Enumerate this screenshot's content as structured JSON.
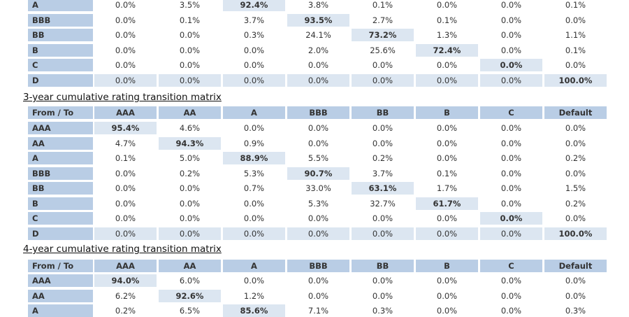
{
  "tables": [
    {
      "rows": [
        {
          "label": "A",
          "cells": [
            "0.0%",
            "3.5%",
            "92.4%",
            "3.8%",
            "0.1%",
            "0.0%",
            "0.0%",
            "0.1%"
          ]
        },
        {
          "label": "BBB",
          "cells": [
            "0.0%",
            "0.1%",
            "3.7%",
            "93.5%",
            "2.7%",
            "0.1%",
            "0.0%",
            "0.0%"
          ]
        },
        {
          "label": "BB",
          "cells": [
            "0.0%",
            "0.0%",
            "0.3%",
            "24.1%",
            "73.2%",
            "1.3%",
            "0.0%",
            "1.1%"
          ]
        },
        {
          "label": "B",
          "cells": [
            "0.0%",
            "0.0%",
            "0.0%",
            "2.0%",
            "25.6%",
            "72.4%",
            "0.0%",
            "0.1%"
          ]
        },
        {
          "label": "C",
          "cells": [
            "0.0%",
            "0.0%",
            "0.0%",
            "0.0%",
            "0.0%",
            "0.0%",
            "0.0%",
            "0.0%"
          ]
        },
        {
          "label": "D",
          "cells": [
            "0.0%",
            "0.0%",
            "0.0%",
            "0.0%",
            "0.0%",
            "0.0%",
            "0.0%",
            "100.0%"
          ]
        }
      ]
    },
    {
      "title": "3-year cumulative rating transition matrix",
      "header": [
        "From / To",
        "AAA",
        "AA",
        "A",
        "BBB",
        "BB",
        "B",
        "C",
        "Default"
      ],
      "rows": [
        {
          "label": "AAA",
          "cells": [
            "95.4%",
            "4.6%",
            "0.0%",
            "0.0%",
            "0.0%",
            "0.0%",
            "0.0%",
            "0.0%"
          ]
        },
        {
          "label": "AA",
          "cells": [
            "4.7%",
            "94.3%",
            "0.9%",
            "0.0%",
            "0.0%",
            "0.0%",
            "0.0%",
            "0.0%"
          ]
        },
        {
          "label": "A",
          "cells": [
            "0.1%",
            "5.0%",
            "88.9%",
            "5.5%",
            "0.2%",
            "0.0%",
            "0.0%",
            "0.2%"
          ]
        },
        {
          "label": "BBB",
          "cells": [
            "0.0%",
            "0.2%",
            "5.3%",
            "90.7%",
            "3.7%",
            "0.1%",
            "0.0%",
            "0.0%"
          ]
        },
        {
          "label": "BB",
          "cells": [
            "0.0%",
            "0.0%",
            "0.7%",
            "33.0%",
            "63.1%",
            "1.7%",
            "0.0%",
            "1.5%"
          ]
        },
        {
          "label": "B",
          "cells": [
            "0.0%",
            "0.0%",
            "0.0%",
            "5.3%",
            "32.7%",
            "61.7%",
            "0.0%",
            "0.2%"
          ]
        },
        {
          "label": "C",
          "cells": [
            "0.0%",
            "0.0%",
            "0.0%",
            "0.0%",
            "0.0%",
            "0.0%",
            "0.0%",
            "0.0%"
          ]
        },
        {
          "label": "D",
          "cells": [
            "0.0%",
            "0.0%",
            "0.0%",
            "0.0%",
            "0.0%",
            "0.0%",
            "0.0%",
            "100.0%"
          ]
        }
      ]
    },
    {
      "title": "4-year cumulative rating transition matrix",
      "header": [
        "From / To",
        "AAA",
        "AA",
        "A",
        "BBB",
        "BB",
        "B",
        "C",
        "Default"
      ],
      "rows": [
        {
          "label": "AAA",
          "cells": [
            "94.0%",
            "6.0%",
            "0.0%",
            "0.0%",
            "0.0%",
            "0.0%",
            "0.0%",
            "0.0%"
          ]
        },
        {
          "label": "AA",
          "cells": [
            "6.2%",
            "92.6%",
            "1.2%",
            "0.0%",
            "0.0%",
            "0.0%",
            "0.0%",
            "0.0%"
          ]
        },
        {
          "label": "A",
          "cells": [
            "0.2%",
            "6.5%",
            "85.6%",
            "7.1%",
            "0.3%",
            "0.0%",
            "0.0%",
            "0.3%"
          ]
        }
      ]
    }
  ]
}
